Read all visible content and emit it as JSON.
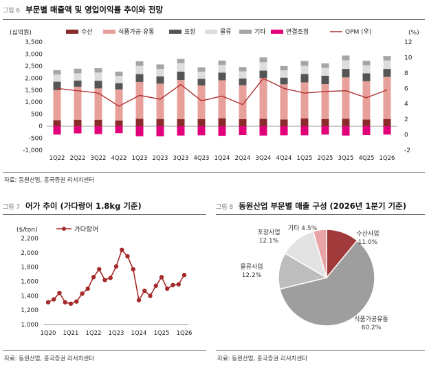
{
  "figures": [
    {
      "no": "그림 6",
      "title": "부문별 매출액 및 영업이익률 추이와 전망",
      "source": "자료: 동원산업, 흥국증권 리서치센터"
    },
    {
      "no": "그림 7",
      "title": "어가 추이 (가다랑어 1.8kg 기준)",
      "source": "자료: 동원산업, 흥국증권 리서치센터"
    },
    {
      "no": "그림 8",
      "title": "동원산업 부문별 매출 구성 (2026년 1분기 기준)",
      "source": "자료: 동원산업, 흥국증권 리서치센터"
    }
  ],
  "chart_data": [
    {
      "type": "bar",
      "stacked": true,
      "categories": [
        "1Q22",
        "2Q22",
        "3Q22",
        "4Q22",
        "1Q23",
        "2Q23",
        "3Q23",
        "4Q23",
        "1Q24",
        "2Q24",
        "3Q24",
        "4Q24",
        "1Q25",
        "2Q25",
        "3Q25",
        "4Q25",
        "1Q26"
      ],
      "xlabels": [
        "1Q22",
        "2Q22",
        "3Q22",
        "4Q22",
        "1Q23",
        "2Q23",
        "3Q23",
        "4Q23",
        "1Q24",
        "2Q24",
        "3Q24",
        "4Q24",
        "1Q25",
        "2Q25",
        "3Q25",
        "4Q25",
        "1Q26"
      ],
      "ylabel": "(십억원)",
      "y2label": "(%)",
      "ylim": [
        -1000,
        3500
      ],
      "y2lim": [
        -2,
        12
      ],
      "yticks": [
        "-1,000",
        "-500",
        "0",
        "500",
        "1,000",
        "1,500",
        "2,000",
        "2,500",
        "3,000",
        "3,500"
      ],
      "y2ticks": [
        "-2",
        "0",
        "2",
        "4",
        "6",
        "8",
        "10",
        "12"
      ],
      "series": [
        {
          "name": "수산",
          "color": "#8b2a2a",
          "values": [
            250,
            270,
            270,
            240,
            310,
            300,
            290,
            300,
            330,
            290,
            310,
            280,
            320,
            300,
            310,
            280,
            300
          ]
        },
        {
          "name": "식품가공·유통",
          "color": "#e8a09a",
          "values": [
            1250,
            1370,
            1300,
            1290,
            1530,
            1470,
            1630,
            1390,
            1580,
            1410,
            1700,
            1460,
            1500,
            1450,
            1720,
            1590,
            1750
          ]
        },
        {
          "name": "포장",
          "color": "#555555",
          "values": [
            350,
            260,
            320,
            260,
            330,
            300,
            350,
            280,
            320,
            280,
            300,
            280,
            350,
            350,
            350,
            330,
            330
          ]
        },
        {
          "name": "물류",
          "color": "#dddddd",
          "values": [
            300,
            300,
            340,
            300,
            340,
            310,
            350,
            300,
            320,
            300,
            350,
            300,
            340,
            330,
            360,
            330,
            350
          ]
        },
        {
          "name": "기타",
          "color": "#a5a5a5",
          "values": [
            180,
            190,
            180,
            180,
            190,
            190,
            180,
            180,
            180,
            180,
            200,
            180,
            200,
            180,
            200,
            190,
            190
          ]
        },
        {
          "name": "연결조정",
          "color": "#e2007a",
          "values": [
            -350,
            -300,
            -330,
            -290,
            -420,
            -420,
            -390,
            -380,
            -400,
            -370,
            -390,
            -380,
            -380,
            -350,
            -390,
            -370,
            -350
          ]
        }
      ],
      "line": {
        "name": "OPM (우)",
        "axis": "right",
        "color": "#b03030",
        "values": [
          6.0,
          5.7,
          5.4,
          3.7,
          5.1,
          4.6,
          6.5,
          4.4,
          5.0,
          3.9,
          7.3,
          6.0,
          5.4,
          5.6,
          5.7,
          4.8,
          5.8
        ]
      }
    },
    {
      "type": "line",
      "ylabel": "($/ton)",
      "ylim": [
        1000,
        2200
      ],
      "yticks": [
        "1,000",
        "1,200",
        "1,400",
        "1,600",
        "1,800",
        "2,000",
        "2,200"
      ],
      "xlabels": [
        "1Q20",
        "1Q21",
        "1Q22",
        "1Q23",
        "1Q24",
        "1Q25",
        "1Q26"
      ],
      "series": [
        {
          "name": "가다랑어",
          "color": "#a52a2a",
          "values": [
            1310,
            1350,
            1440,
            1310,
            1290,
            1320,
            1430,
            1500,
            1660,
            1770,
            1620,
            1650,
            1810,
            2040,
            1950,
            1770,
            1340,
            1470,
            1400,
            1540,
            1660,
            1500,
            1550,
            1560,
            1690
          ]
        }
      ]
    },
    {
      "type": "pie",
      "slices": [
        {
          "name": "수산사업",
          "value": 11.0,
          "label": "수산사업",
          "pct": "11.0%",
          "color": "#a13a3a"
        },
        {
          "name": "식품가공유통",
          "value": 60.2,
          "label": "식품가공유통",
          "pct": "60.2%",
          "color": "#9e9e9e"
        },
        {
          "name": "물류사업",
          "value": 12.2,
          "label": "물류사업",
          "pct": "12.2%",
          "color": "#bdbdbd"
        },
        {
          "name": "포장사업",
          "value": 12.1,
          "label": "포장사업",
          "pct": "12.1%",
          "color": "#e3e3e3"
        },
        {
          "name": "기타",
          "value": 4.5,
          "label": "기타 4.5%",
          "pct": "",
          "color": "#e9a5a5"
        }
      ]
    }
  ]
}
